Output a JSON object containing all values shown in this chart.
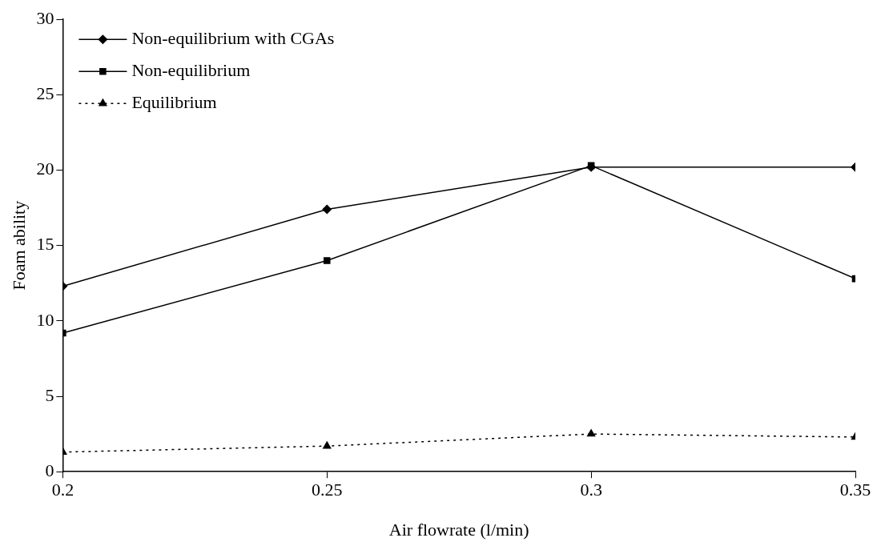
{
  "chart_data": {
    "type": "line",
    "xlabel": "Air flowrate (l/min)",
    "ylabel": "Foam ability",
    "x": [
      0.2,
      0.25,
      0.3,
      0.35
    ],
    "xlim": [
      0.2,
      0.35
    ],
    "xticks": [
      0.2,
      0.25,
      0.3,
      0.35
    ],
    "ylim": [
      0,
      30
    ],
    "yticks": [
      0,
      5,
      10,
      15,
      20,
      25,
      30
    ],
    "grid": false,
    "legend": "top left",
    "series": [
      {
        "name": "Non-equilibrium with CGAs",
        "color": "#000000",
        "marker": "diamond",
        "line_style": "solid",
        "values": [
          12.3,
          17.4,
          20.2,
          20.2
        ]
      },
      {
        "name": "Non-equilibrium",
        "color": "#000000",
        "marker": "square",
        "line_style": "solid",
        "values": [
          9.2,
          14.0,
          20.3,
          12.8
        ]
      },
      {
        "name": "Equilibrium",
        "color": "#000000",
        "marker": "triangle",
        "line_style": "dotted",
        "values": [
          1.3,
          1.7,
          2.5,
          2.3
        ]
      }
    ]
  }
}
